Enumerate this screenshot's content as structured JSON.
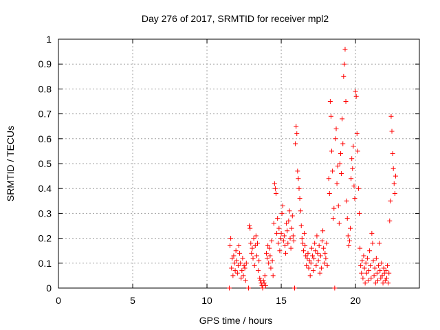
{
  "chart_data": {
    "type": "scatter",
    "title": "Day 276 of 2017, SRMTID for receiver mpl2",
    "xlabel": "GPS time / hours",
    "ylabel": "SRMTID / TECUs",
    "xlim": [
      0,
      24.3
    ],
    "ylim": [
      0,
      1
    ],
    "xticks": [
      0,
      5,
      10,
      15,
      20
    ],
    "yticks": [
      0,
      0.1,
      0.2,
      0.3,
      0.4,
      0.5,
      0.6,
      0.7,
      0.8,
      0.9,
      1
    ],
    "xtick_labels": [
      "0",
      "5",
      "10",
      "15",
      "20"
    ],
    "ytick_labels": [
      "0",
      "0.1",
      "0.2",
      "0.3",
      "0.4",
      "0.5",
      "0.6",
      "0.7",
      "0.8",
      "0.9",
      "1"
    ],
    "grid": true,
    "marker": "+",
    "color": "#ff0000",
    "series": [
      {
        "name": "SRMTID",
        "points": [
          [
            11.5,
            0.0
          ],
          [
            11.55,
            0.17
          ],
          [
            11.6,
            0.2
          ],
          [
            11.65,
            0.08
          ],
          [
            11.7,
            0.12
          ],
          [
            11.75,
            0.05
          ],
          [
            11.8,
            0.13
          ],
          [
            11.85,
            0.1
          ],
          [
            11.9,
            0.07
          ],
          [
            11.95,
            0.15
          ],
          [
            12.0,
            0.11
          ],
          [
            12.05,
            0.06
          ],
          [
            12.1,
            0.09
          ],
          [
            12.15,
            0.17
          ],
          [
            12.2,
            0.14
          ],
          [
            12.25,
            0.1
          ],
          [
            12.3,
            0.04
          ],
          [
            12.35,
            0.07
          ],
          [
            12.4,
            0.12
          ],
          [
            12.45,
            0.05
          ],
          [
            12.5,
            0.09
          ],
          [
            12.55,
            0.08
          ],
          [
            12.6,
            0.03
          ],
          [
            12.65,
            0.1
          ],
          [
            12.8,
            0.0
          ],
          [
            12.85,
            0.25
          ],
          [
            12.9,
            0.24
          ],
          [
            12.95,
            0.18
          ],
          [
            13.0,
            0.14
          ],
          [
            13.05,
            0.16
          ],
          [
            13.1,
            0.12
          ],
          [
            13.15,
            0.2
          ],
          [
            13.2,
            0.09
          ],
          [
            13.25,
            0.17
          ],
          [
            13.3,
            0.21
          ],
          [
            13.35,
            0.13
          ],
          [
            13.4,
            0.18
          ],
          [
            13.45,
            0.07
          ],
          [
            13.5,
            0.11
          ],
          [
            13.55,
            0.04
          ],
          [
            13.6,
            0.03
          ],
          [
            13.65,
            0.02
          ],
          [
            13.7,
            0.01
          ],
          [
            13.75,
            0.0
          ],
          [
            13.8,
            0.03
          ],
          [
            13.85,
            0.02
          ],
          [
            13.9,
            0.05
          ],
          [
            13.95,
            0.01
          ],
          [
            14.0,
            0.14
          ],
          [
            14.05,
            0.12
          ],
          [
            14.1,
            0.17
          ],
          [
            14.15,
            0.1
          ],
          [
            14.2,
            0.16
          ],
          [
            14.25,
            0.13
          ],
          [
            14.3,
            0.08
          ],
          [
            14.35,
            0.19
          ],
          [
            14.4,
            0.11
          ],
          [
            14.45,
            0.05
          ],
          [
            14.5,
            0.26
          ],
          [
            14.55,
            0.42
          ],
          [
            14.6,
            0.4
          ],
          [
            14.65,
            0.38
          ],
          [
            14.7,
            0.22
          ],
          [
            14.75,
            0.28
          ],
          [
            14.8,
            0.18
          ],
          [
            14.85,
            0.24
          ],
          [
            14.9,
            0.15
          ],
          [
            14.95,
            0.2
          ],
          [
            15.0,
            0.22
          ],
          [
            15.05,
            0.3
          ],
          [
            15.1,
            0.33
          ],
          [
            15.15,
            0.19
          ],
          [
            15.2,
            0.21
          ],
          [
            15.25,
            0.17
          ],
          [
            15.3,
            0.14
          ],
          [
            15.35,
            0.26
          ],
          [
            15.4,
            0.23
          ],
          [
            15.45,
            0.18
          ],
          [
            15.5,
            0.27
          ],
          [
            15.55,
            0.31
          ],
          [
            15.6,
            0.2
          ],
          [
            15.65,
            0.16
          ],
          [
            15.7,
            0.24
          ],
          [
            15.75,
            0.29
          ],
          [
            15.8,
            0.21
          ],
          [
            15.85,
            0.19
          ],
          [
            15.9,
            0.0
          ],
          [
            15.95,
            0.58
          ],
          [
            16.0,
            0.65
          ],
          [
            16.05,
            0.62
          ],
          [
            16.1,
            0.47
          ],
          [
            16.15,
            0.44
          ],
          [
            16.2,
            0.4
          ],
          [
            16.25,
            0.36
          ],
          [
            16.3,
            0.31
          ],
          [
            16.35,
            0.25
          ],
          [
            16.4,
            0.2
          ],
          [
            16.45,
            0.18
          ],
          [
            16.5,
            0.15
          ],
          [
            16.55,
            0.22
          ],
          [
            16.6,
            0.17
          ],
          [
            16.65,
            0.13
          ],
          [
            16.7,
            0.09
          ],
          [
            16.75,
            0.12
          ],
          [
            16.8,
            0.14
          ],
          [
            16.85,
            0.08
          ],
          [
            16.9,
            0.11
          ],
          [
            16.95,
            0.05
          ],
          [
            17.0,
            0.1
          ],
          [
            17.05,
            0.16
          ],
          [
            17.1,
            0.13
          ],
          [
            17.15,
            0.07
          ],
          [
            17.2,
            0.12
          ],
          [
            17.25,
            0.18
          ],
          [
            17.3,
            0.15
          ],
          [
            17.35,
            0.09
          ],
          [
            17.4,
            0.21
          ],
          [
            17.45,
            0.14
          ],
          [
            17.5,
            0.11
          ],
          [
            17.55,
            0.17
          ],
          [
            17.6,
            0.06
          ],
          [
            17.65,
            0.13
          ],
          [
            17.7,
            0.08
          ],
          [
            17.75,
            0.19
          ],
          [
            17.8,
            0.23
          ],
          [
            17.85,
            0.16
          ],
          [
            17.9,
            0.1
          ],
          [
            17.95,
            0.14
          ],
          [
            18.0,
            0.12
          ],
          [
            18.05,
            0.18
          ],
          [
            18.1,
            0.09
          ],
          [
            18.2,
            0.44
          ],
          [
            18.25,
            0.38
          ],
          [
            18.3,
            0.75
          ],
          [
            18.35,
            0.69
          ],
          [
            18.4,
            0.55
          ],
          [
            18.45,
            0.47
          ],
          [
            18.5,
            0.28
          ],
          [
            18.55,
            0.32
          ],
          [
            18.6,
            0.0
          ],
          [
            18.65,
            0.6
          ],
          [
            18.7,
            0.64
          ],
          [
            18.75,
            0.42
          ],
          [
            18.8,
            0.49
          ],
          [
            18.85,
            0.33
          ],
          [
            18.9,
            0.26
          ],
          [
            18.95,
            0.5
          ],
          [
            19.0,
            0.54
          ],
          [
            19.05,
            0.46
          ],
          [
            19.1,
            0.68
          ],
          [
            19.15,
            0.58
          ],
          [
            19.2,
            0.85
          ],
          [
            19.25,
            0.9
          ],
          [
            19.3,
            0.96
          ],
          [
            19.35,
            0.75
          ],
          [
            19.4,
            0.35
          ],
          [
            19.45,
            0.28
          ],
          [
            19.5,
            0.21
          ],
          [
            19.55,
            0.17
          ],
          [
            19.6,
            0.19
          ],
          [
            19.65,
            0.24
          ],
          [
            19.7,
            0.44
          ],
          [
            19.75,
            0.52
          ],
          [
            19.8,
            0.48
          ],
          [
            19.85,
            0.57
          ],
          [
            19.9,
            0.41
          ],
          [
            19.95,
            0.36
          ],
          [
            20.0,
            0.79
          ],
          [
            20.05,
            0.77
          ],
          [
            20.1,
            0.62
          ],
          [
            20.15,
            0.55
          ],
          [
            20.2,
            0.4
          ],
          [
            20.25,
            0.3
          ],
          [
            20.3,
            0.16
          ],
          [
            20.35,
            0.09
          ],
          [
            20.4,
            0.06
          ],
          [
            20.45,
            0.11
          ],
          [
            20.5,
            0.04
          ],
          [
            20.55,
            0.13
          ],
          [
            20.6,
            0.08
          ],
          [
            20.65,
            0.02
          ],
          [
            20.7,
            0.1
          ],
          [
            20.75,
            0.06
          ],
          [
            20.8,
            0.12
          ],
          [
            20.85,
            0.03
          ],
          [
            20.9,
            0.07
          ],
          [
            20.95,
            0.15
          ],
          [
            21.0,
            0.09
          ],
          [
            21.05,
            0.04
          ],
          [
            21.1,
            0.22
          ],
          [
            21.15,
            0.18
          ],
          [
            21.2,
            0.11
          ],
          [
            21.25,
            0.05
          ],
          [
            21.3,
            0.08
          ],
          [
            21.35,
            0.02
          ],
          [
            21.4,
            0.12
          ],
          [
            21.45,
            0.06
          ],
          [
            21.5,
            0.03
          ],
          [
            21.55,
            0.09
          ],
          [
            21.6,
            0.18
          ],
          [
            21.65,
            0.07
          ],
          [
            21.7,
            0.04
          ],
          [
            21.75,
            0.1
          ],
          [
            21.8,
            0.05
          ],
          [
            21.85,
            0.02
          ],
          [
            21.9,
            0.08
          ],
          [
            21.95,
            0.06
          ],
          [
            22.0,
            0.03
          ],
          [
            22.05,
            0.07
          ],
          [
            22.1,
            0.04
          ],
          [
            22.15,
            0.09
          ],
          [
            22.2,
            0.02
          ],
          [
            22.25,
            0.06
          ],
          [
            22.3,
            0.27
          ],
          [
            22.35,
            0.35
          ],
          [
            22.4,
            0.69
          ],
          [
            22.45,
            0.63
          ],
          [
            22.5,
            0.54
          ],
          [
            22.55,
            0.48
          ],
          [
            22.6,
            0.42
          ],
          [
            22.65,
            0.38
          ],
          [
            22.7,
            0.45
          ]
        ]
      }
    ]
  }
}
